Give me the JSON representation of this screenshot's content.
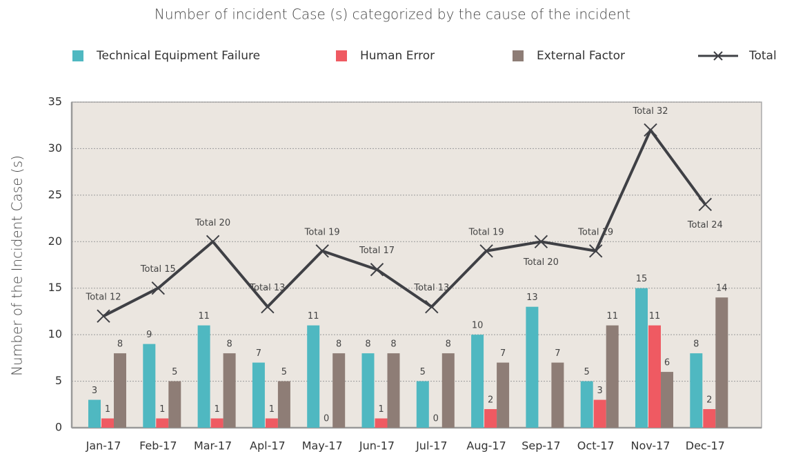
{
  "chart_data": {
    "type": "bar",
    "title": "Number of incident Case (s) categorized by the cause of the incident",
    "y_label": "Number of the Incident Case (s)",
    "categories": [
      "Jan-17",
      "Feb-17",
      "Mar-17",
      "Apl-17",
      "May-17",
      "Jun-17",
      "Jul-17",
      "Aug-17",
      "Sep-17",
      "Oct-17",
      "Nov-17",
      "Dec-17"
    ],
    "series": [
      {
        "name": "Technical Equipment Failure",
        "color": "#4fb8c1",
        "type": "bar",
        "values": [
          3,
          9,
          11,
          7,
          11,
          8,
          5,
          10,
          13,
          5,
          15,
          8
        ]
      },
      {
        "name": "Human Error",
        "color": "#ef5a62",
        "type": "bar",
        "values": [
          1,
          1,
          1,
          1,
          0,
          1,
          0,
          2,
          null,
          3,
          11,
          2
        ]
      },
      {
        "name": "External Factor",
        "color": "#8e7d76",
        "type": "bar",
        "values": [
          8,
          5,
          8,
          5,
          8,
          8,
          8,
          7,
          7,
          11,
          6,
          14
        ]
      },
      {
        "name": "Total",
        "color": "#3f4045",
        "type": "line",
        "values": [
          12,
          15,
          20,
          13,
          19,
          17,
          13,
          19,
          20,
          19,
          32,
          24
        ],
        "value_labels": [
          "Total 12",
          "Total 15",
          "Total 20",
          "Total 13",
          "Total 19",
          "Total 17",
          "Total 13",
          "Total 19",
          "Total 20",
          "Total 19",
          "Total 32",
          "Total 24"
        ]
      }
    ],
    "ylim": [
      0,
      35
    ],
    "yticks": [
      0,
      5,
      10,
      15,
      20,
      25,
      30,
      35
    ],
    "grid": true,
    "legend": "top"
  }
}
